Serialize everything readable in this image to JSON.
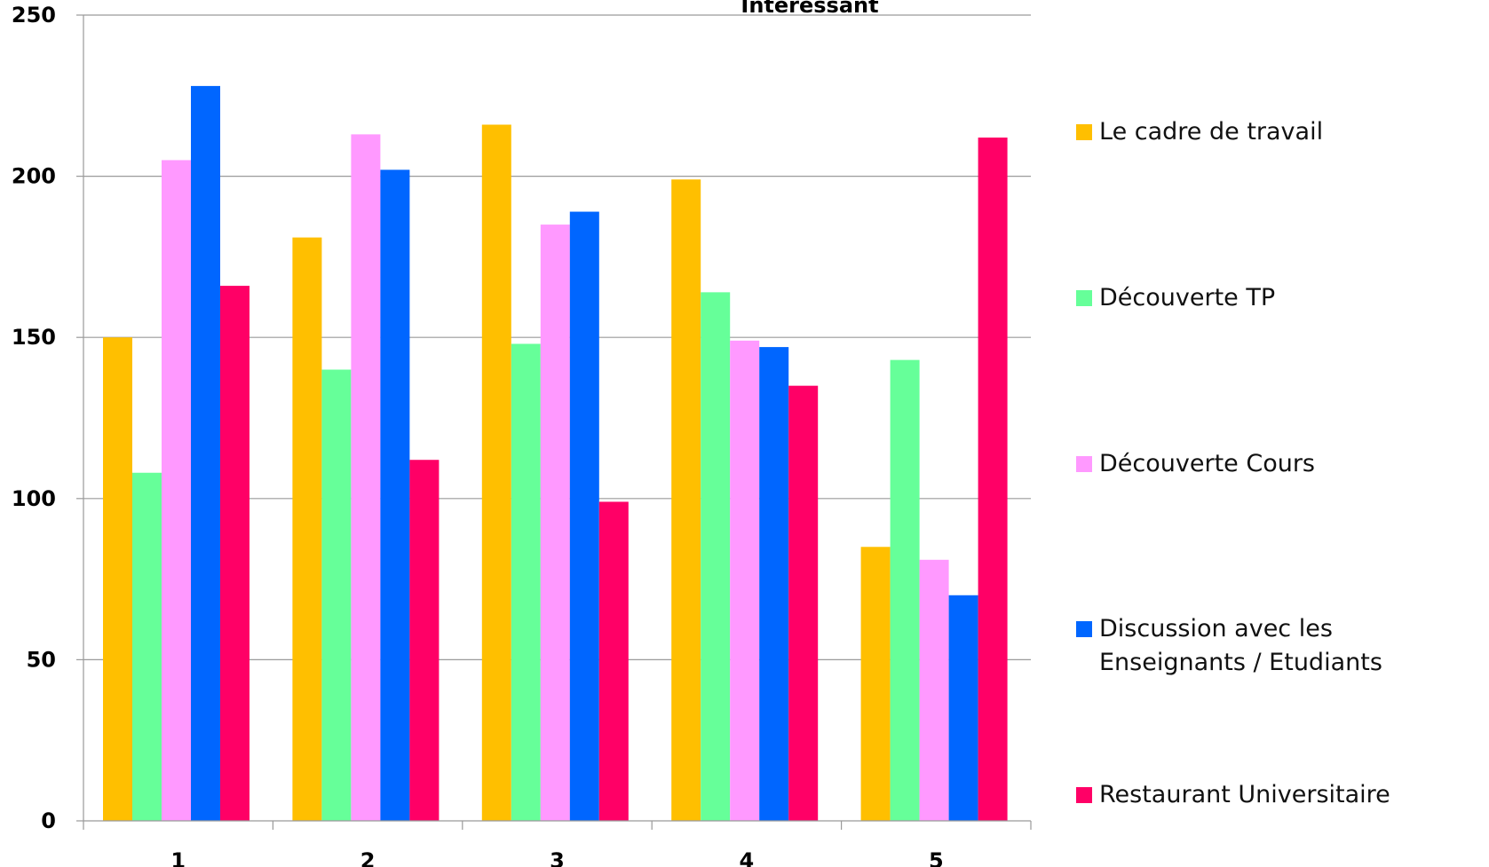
{
  "chart_data": {
    "type": "bar",
    "title": "Intéressant",
    "categories": [
      "1",
      "2",
      "3",
      "4",
      "5"
    ],
    "ylim": [
      0,
      250
    ],
    "yticks": [
      0,
      50,
      100,
      150,
      200,
      250
    ],
    "grid": true,
    "legend_position": "right",
    "series": [
      {
        "name": "Le cadre de travail",
        "color": "#FFBF00",
        "values": [
          150,
          181,
          216,
          199,
          85
        ]
      },
      {
        "name": "Découverte TP",
        "color": "#66FF99",
        "values": [
          108,
          140,
          148,
          164,
          143
        ]
      },
      {
        "name": "Découverte Cours",
        "color": "#FF99FF",
        "values": [
          205,
          213,
          185,
          149,
          81
        ]
      },
      {
        "name": "Discussion avec les Enseignants / Etudiants",
        "color": "#0066FF",
        "values": [
          228,
          202,
          189,
          147,
          70
        ]
      },
      {
        "name": "Restaurant Universitaire",
        "color": "#FF0066",
        "values": [
          166,
          112,
          99,
          135,
          212
        ]
      }
    ]
  }
}
